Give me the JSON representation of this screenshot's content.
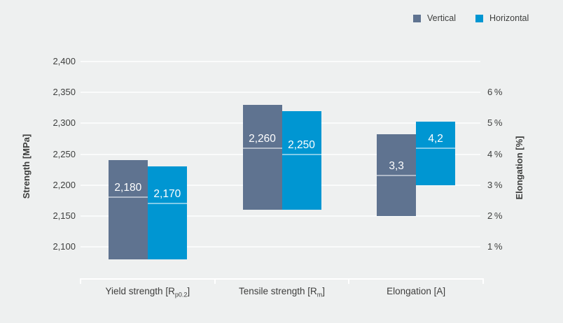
{
  "legend": {
    "items": [
      {
        "label": "Vertical",
        "color": "#5f7390"
      },
      {
        "label": "Horizontal",
        "color": "#0096d2"
      }
    ]
  },
  "left_axis": {
    "title": "Strength [MPa]",
    "ticks": [
      {
        "value": 2400,
        "label": "2,400"
      },
      {
        "value": 2350,
        "label": "2,350"
      },
      {
        "value": 2300,
        "label": "2,300"
      },
      {
        "value": 2250,
        "label": "2,250"
      },
      {
        "value": 2200,
        "label": "2,200"
      },
      {
        "value": 2150,
        "label": "2,150"
      },
      {
        "value": 2100,
        "label": "2,100"
      }
    ]
  },
  "right_axis": {
    "title": "Elongation [%]",
    "ticks": [
      {
        "value": 6,
        "label": "6 %"
      },
      {
        "value": 5,
        "label": "5 %"
      },
      {
        "value": 4,
        "label": "4 %"
      },
      {
        "value": 3,
        "label": "3 %"
      },
      {
        "value": 2,
        "label": "2 %"
      },
      {
        "value": 1,
        "label": "1 %"
      }
    ]
  },
  "categories": [
    {
      "main": "Yield strength [R",
      "sub": "p0.2",
      "end": "]",
      "full": "Yield strength [Rp0.2]"
    },
    {
      "main": "Tensile strength [R",
      "sub": "m",
      "end": "]",
      "full": "Tensile strength [Rm]"
    },
    {
      "main": "Elongation [A]",
      "sub": "",
      "end": "",
      "full": "Elongation [A]"
    }
  ],
  "chart_data": {
    "type": "bar",
    "subtype": "floating range bars (min-max) with mean marker line and value label",
    "title": "",
    "categories": [
      "Yield strength [Rp0.2]",
      "Tensile strength [Rm]",
      "Elongation [A]"
    ],
    "left_axis": {
      "label": "Strength [MPa]",
      "lim": [
        2050,
        2400
      ],
      "tick_step": 50
    },
    "right_axis": {
      "label": "Elongation [%]",
      "ticks": [
        1,
        2,
        3,
        4,
        5,
        6
      ],
      "alignment": "1% aligns with 2,100 MPa; 50 MPa per 1%"
    },
    "grid": "horizontal only",
    "legend_position": "top-right",
    "series": [
      {
        "name": "Vertical",
        "color": "#5f7390",
        "points": [
          {
            "category": "Yield strength [Rp0.2]",
            "axis": "left",
            "unit": "MPa",
            "range_low": 2080,
            "range_high": 2240,
            "mean": 2180,
            "label": "2,180"
          },
          {
            "category": "Tensile strength [Rm]",
            "axis": "left",
            "unit": "MPa",
            "range_low": 2160,
            "range_high": 2330,
            "mean": 2260,
            "label": "2,260"
          },
          {
            "category": "Elongation [A]",
            "axis": "right",
            "unit": "%",
            "range_low": 2.0,
            "range_high": 4.65,
            "mean": 3.3,
            "label": "3,3"
          }
        ]
      },
      {
        "name": "Horizontal",
        "color": "#0096d2",
        "points": [
          {
            "category": "Yield strength [Rp0.2]",
            "axis": "left",
            "unit": "MPa",
            "range_low": 2080,
            "range_high": 2230,
            "mean": 2170,
            "label": "2,170"
          },
          {
            "category": "Tensile strength [Rm]",
            "axis": "left",
            "unit": "MPa",
            "range_low": 2160,
            "range_high": 2320,
            "mean": 2250,
            "label": "2,250"
          },
          {
            "category": "Elongation [A]",
            "axis": "right",
            "unit": "%",
            "range_low": 3.0,
            "range_high": 5.05,
            "mean": 4.2,
            "label": "4,2"
          }
        ]
      }
    ],
    "colors": {
      "background": "#eef0f0",
      "gridline": "#fafbfb",
      "axis_line": "#ffffff",
      "vertical_series": "#5f7390",
      "horizontal_series": "#0096d2",
      "mean_marker": "rgba(255,255,255,0.5)",
      "value_label_text": "#ffffff",
      "text": "#3c3d3c"
    }
  }
}
